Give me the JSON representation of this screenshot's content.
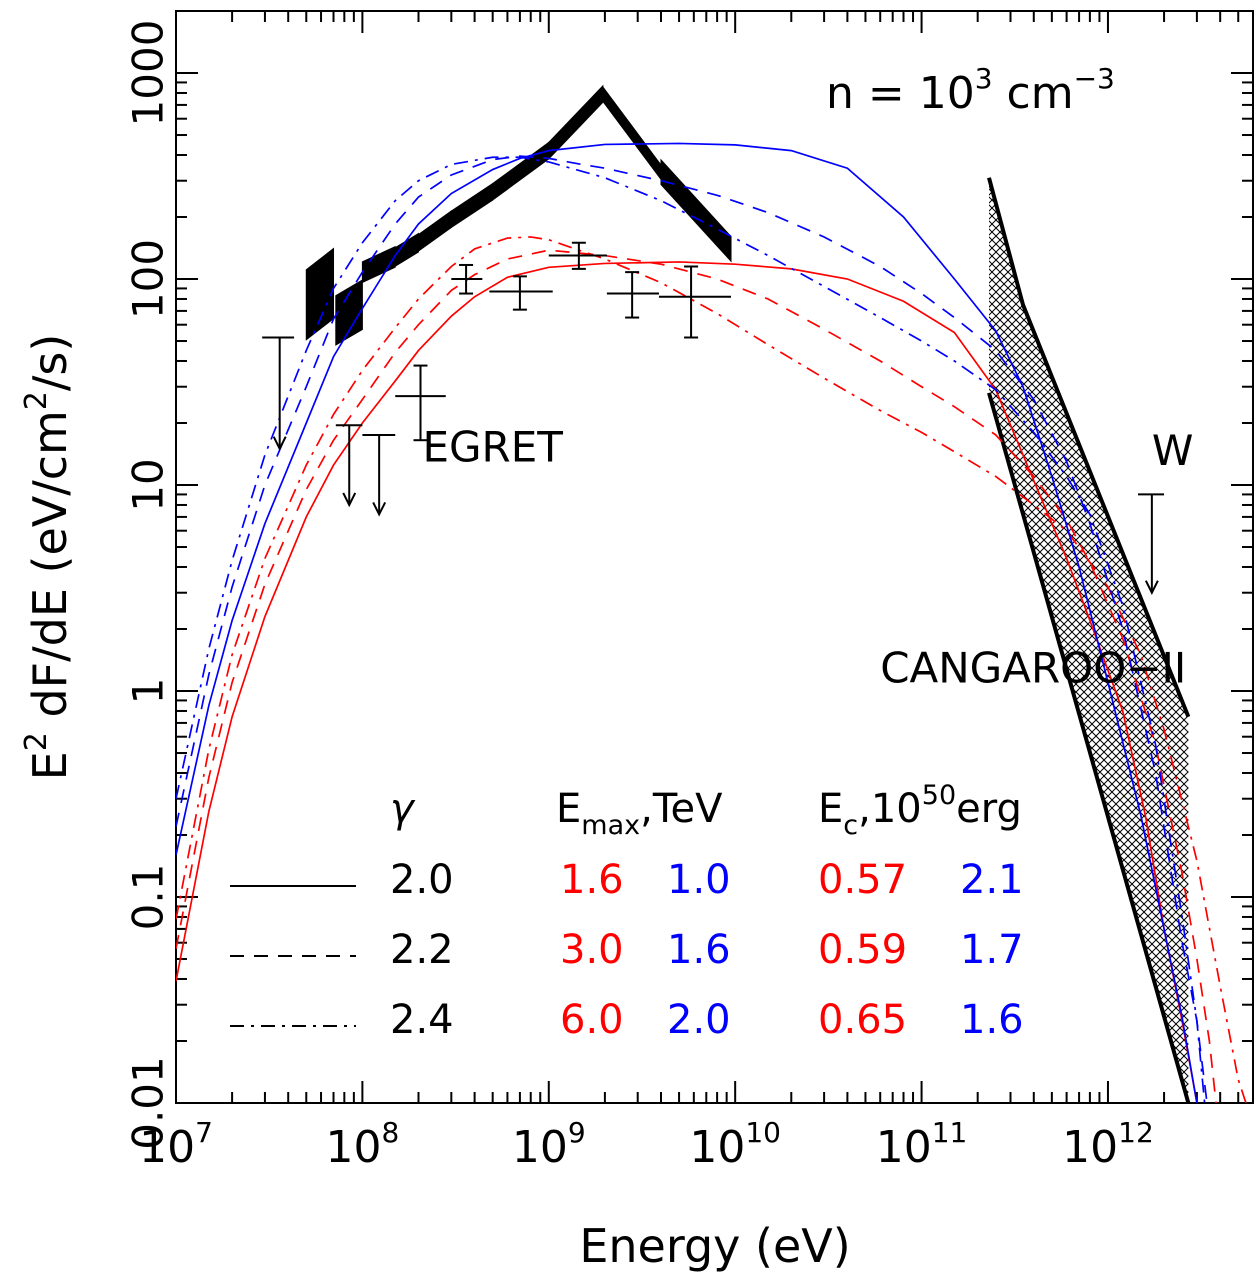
{
  "chart_data": {
    "type": "line",
    "xlabel": "Energy (eV)",
    "ylabel_main": "E",
    "ylabel_sup": "2",
    "ylabel_rest1": " dF/dE (eV/cm",
    "ylabel_sup2": "2",
    "ylabel_rest2": "/s)",
    "xscale": "log",
    "yscale": "log",
    "xlim": [
      10000000.0,
      6000000000000.0
    ],
    "ylim": [
      0.01,
      2000
    ],
    "xticks": [
      {
        "value": 10000000.0,
        "base": "10",
        "exp": "7"
      },
      {
        "value": 100000000.0,
        "base": "10",
        "exp": "8"
      },
      {
        "value": 1000000000.0,
        "base": "10",
        "exp": "9"
      },
      {
        "value": 10000000000.0,
        "base": "10",
        "exp": "10"
      },
      {
        "value": 100000000000.0,
        "base": "10",
        "exp": "11"
      },
      {
        "value": 1000000000000.0,
        "base": "10",
        "exp": "12"
      }
    ],
    "yticks": [
      {
        "value": 0.01,
        "label": "0.01"
      },
      {
        "value": 0.1,
        "label": "0.1"
      },
      {
        "value": 1,
        "label": "1"
      },
      {
        "value": 10,
        "label": "10"
      },
      {
        "value": 100,
        "label": "100"
      },
      {
        "value": 1000,
        "label": "1000"
      }
    ],
    "density_label": {
      "prefix": "n = 10",
      "exp1": "3",
      "mid": " cm",
      "exp2": "−3"
    },
    "annotations": [
      {
        "text": "EGRET",
        "x": 210000000.0,
        "y": 13
      },
      {
        "text": "CANGAROO−II",
        "x": 60000000000.0,
        "y": 1.1
      },
      {
        "text": "W",
        "x": 1720000000000.0,
        "y": 12.5
      }
    ],
    "legend": {
      "headers": {
        "gamma": "γ",
        "emax_main": "E",
        "emax_sub": "max",
        "emax_rest": ",TeV",
        "ec_main": "E",
        "ec_sub": "c",
        "ec_rest": ",10",
        "ec_sup": "50",
        "ec_unit": "erg"
      },
      "rows": [
        {
          "style": "solid",
          "gamma": "2.0",
          "emax_red": "1.6",
          "emax_blue": "1.0",
          "ec_red": "0.57",
          "ec_blue": "2.1"
        },
        {
          "style": "dashed",
          "gamma": "2.2",
          "emax_red": "3.0",
          "emax_blue": "1.6",
          "ec_red": "0.59",
          "ec_blue": "1.7"
        },
        {
          "style": "dashdot",
          "gamma": "2.4",
          "emax_red": "6.0",
          "emax_blue": "2.0",
          "ec_red": "0.65",
          "ec_blue": "1.6"
        }
      ]
    },
    "colors": {
      "red": "#ff0000",
      "blue": "#0000ff",
      "black": "#000000"
    },
    "series": [
      {
        "color": "red",
        "style": "solid",
        "points": [
          [
            10000000.0,
            0.039
          ],
          [
            15000000.0,
            0.26
          ],
          [
            20000000.0,
            0.75
          ],
          [
            30000000.0,
            2.3
          ],
          [
            50000000.0,
            7
          ],
          [
            70000000.0,
            12.5
          ],
          [
            100000000.0,
            20
          ],
          [
            150000000.0,
            32
          ],
          [
            200000000.0,
            45
          ],
          [
            300000000.0,
            66
          ],
          [
            400000000.0,
            82
          ],
          [
            600000000.0,
            102
          ],
          [
            1000000000.0,
            114
          ],
          [
            2000000000.0,
            119
          ],
          [
            5000000000.0,
            121
          ],
          [
            10000000000.0,
            118
          ],
          [
            20000000000.0,
            112
          ],
          [
            40000000000.0,
            100
          ],
          [
            80000000000.0,
            78
          ],
          [
            150000000000.0,
            55
          ],
          [
            250000000000.0,
            29
          ],
          [
            400000000000.0,
            10.5
          ],
          [
            600000000000.0,
            4.4
          ],
          [
            800000000000.0,
            2.2
          ],
          [
            1200000000000.0,
            0.8
          ],
          [
            1600000000000.0,
            0.24
          ],
          [
            2000000000000.0,
            0.07
          ],
          [
            2500000000000.0,
            0.025
          ],
          [
            3000000000000.0,
            0.01
          ]
        ]
      },
      {
        "color": "red",
        "style": "dashed",
        "points": [
          [
            10000000.0,
            0.056
          ],
          [
            15000000.0,
            0.38
          ],
          [
            20000000.0,
            1.1
          ],
          [
            30000000.0,
            3.3
          ],
          [
            50000000.0,
            9.5
          ],
          [
            70000000.0,
            16.5
          ],
          [
            100000000.0,
            26
          ],
          [
            150000000.0,
            44
          ],
          [
            200000000.0,
            60
          ],
          [
            300000000.0,
            88
          ],
          [
            400000000.0,
            105
          ],
          [
            600000000.0,
            125
          ],
          [
            1000000000.0,
            138
          ],
          [
            2000000000.0,
            130
          ],
          [
            4000000000.0,
            118
          ],
          [
            8000000000.0,
            100
          ],
          [
            15000000000.0,
            80
          ],
          [
            30000000000.0,
            57
          ],
          [
            60000000000.0,
            40
          ],
          [
            100000000000.0,
            30
          ],
          [
            150000000000.0,
            24
          ],
          [
            250000000000.0,
            17.5
          ],
          [
            400000000000.0,
            11
          ],
          [
            600000000000.0,
            6.8
          ],
          [
            800000000000.0,
            4.2
          ],
          [
            1200000000000.0,
            1.8
          ],
          [
            1800000000000.0,
            0.55
          ],
          [
            2500000000000.0,
            0.13
          ],
          [
            3000000000000.0,
            0.05
          ],
          [
            3500000000000.0,
            0.02
          ],
          [
            3800000000000.0,
            0.01
          ]
        ]
      },
      {
        "color": "red",
        "style": "dashdot",
        "points": [
          [
            10000000.0,
            0.078
          ],
          [
            15000000.0,
            0.52
          ],
          [
            20000000.0,
            1.5
          ],
          [
            30000000.0,
            4.4
          ],
          [
            50000000.0,
            12.5
          ],
          [
            70000000.0,
            22
          ],
          [
            100000000.0,
            36
          ],
          [
            150000000.0,
            58
          ],
          [
            200000000.0,
            80
          ],
          [
            300000000.0,
            115
          ],
          [
            400000000.0,
            140
          ],
          [
            600000000.0,
            158
          ],
          [
            800000000.0,
            160
          ],
          [
            1000000000.0,
            155
          ],
          [
            2000000000.0,
            125
          ],
          [
            4000000000.0,
            96
          ],
          [
            8000000000.0,
            68
          ],
          [
            15000000000.0,
            48
          ],
          [
            30000000000.0,
            33
          ],
          [
            60000000000.0,
            23
          ],
          [
            100000000000.0,
            18
          ],
          [
            150000000000.0,
            14.5
          ],
          [
            250000000000.0,
            11
          ],
          [
            400000000000.0,
            8
          ],
          [
            600000000000.0,
            6
          ],
          [
            1000000000000.0,
            3.2
          ],
          [
            1500000000000.0,
            1.5
          ],
          [
            2000000000000.0,
            0.65
          ],
          [
            3000000000000.0,
            0.15
          ],
          [
            4000000000000.0,
            0.037
          ],
          [
            5000000000000.0,
            0.013
          ],
          [
            5500000000000.0,
            0.01
          ]
        ]
      },
      {
        "color": "blue",
        "style": "solid",
        "points": [
          [
            10000000.0,
            0.16
          ],
          [
            15000000.0,
            0.85
          ],
          [
            20000000.0,
            2.2
          ],
          [
            30000000.0,
            6.5
          ],
          [
            50000000.0,
            20
          ],
          [
            70000000.0,
            42
          ],
          [
            100000000.0,
            72
          ],
          [
            150000000.0,
            130
          ],
          [
            200000000.0,
            185
          ],
          [
            300000000.0,
            260
          ],
          [
            500000000.0,
            340
          ],
          [
            700000000.0,
            385
          ],
          [
            1000000000.0,
            420
          ],
          [
            2000000000.0,
            450
          ],
          [
            5000000000.0,
            455
          ],
          [
            10000000000.0,
            448
          ],
          [
            20000000000.0,
            420
          ],
          [
            40000000000.0,
            345
          ],
          [
            80000000000.0,
            200
          ],
          [
            150000000000.0,
            100
          ],
          [
            250000000000.0,
            56
          ],
          [
            350000000000.0,
            30
          ],
          [
            500000000000.0,
            11
          ],
          [
            700000000000.0,
            4
          ],
          [
            1000000000000.0,
            1.1
          ],
          [
            1500000000000.0,
            0.25
          ],
          [
            2000000000000.0,
            0.07
          ],
          [
            2500000000000.0,
            0.026
          ],
          [
            3000000000000.0,
            0.01
          ]
        ]
      },
      {
        "color": "blue",
        "style": "dashed",
        "points": [
          [
            10000000.0,
            0.22
          ],
          [
            15000000.0,
            1.2
          ],
          [
            20000000.0,
            3.2
          ],
          [
            30000000.0,
            10
          ],
          [
            50000000.0,
            30
          ],
          [
            70000000.0,
            64
          ],
          [
            100000000.0,
            108
          ],
          [
            150000000.0,
            185
          ],
          [
            200000000.0,
            250
          ],
          [
            300000000.0,
            320
          ],
          [
            500000000.0,
            380
          ],
          [
            700000000.0,
            395
          ],
          [
            1000000000.0,
            385
          ],
          [
            1500000000.0,
            360
          ],
          [
            2000000000.0,
            345
          ],
          [
            4000000000.0,
            300
          ],
          [
            8000000000.0,
            255
          ],
          [
            15000000000.0,
            210
          ],
          [
            30000000000.0,
            160
          ],
          [
            60000000000.0,
            115
          ],
          [
            100000000000.0,
            85
          ],
          [
            150000000000.0,
            65
          ],
          [
            250000000000.0,
            45
          ],
          [
            400000000000.0,
            26
          ],
          [
            600000000000.0,
            13
          ],
          [
            800000000000.0,
            6.5
          ],
          [
            1200000000000.0,
            2
          ],
          [
            1800000000000.0,
            0.4
          ],
          [
            2500000000000.0,
            0.06
          ],
          [
            3000000000000.0,
            0.025
          ],
          [
            3400000000000.0,
            0.01
          ]
        ]
      },
      {
        "color": "blue",
        "style": "dashdot",
        "points": [
          [
            10000000.0,
            0.3
          ],
          [
            15000000.0,
            1.6
          ],
          [
            20000000.0,
            4.3
          ],
          [
            30000000.0,
            14
          ],
          [
            50000000.0,
            45
          ],
          [
            70000000.0,
            90
          ],
          [
            100000000.0,
            150
          ],
          [
            150000000.0,
            240
          ],
          [
            200000000.0,
            300
          ],
          [
            300000000.0,
            360
          ],
          [
            500000000.0,
            390
          ],
          [
            700000000.0,
            390
          ],
          [
            1000000000.0,
            370
          ],
          [
            2000000000.0,
            310
          ],
          [
            4000000000.0,
            240
          ],
          [
            8000000000.0,
            175
          ],
          [
            15000000000.0,
            130
          ],
          [
            30000000000.0,
            92
          ],
          [
            60000000000.0,
            65
          ],
          [
            100000000000.0,
            50
          ],
          [
            150000000000.0,
            40
          ],
          [
            250000000000.0,
            29
          ],
          [
            400000000000.0,
            18
          ],
          [
            600000000000.0,
            11
          ],
          [
            800000000000.0,
            7.2
          ],
          [
            1200000000000.0,
            2.6
          ],
          [
            1800000000000.0,
            0.55
          ],
          [
            2500000000000.0,
            0.08
          ],
          [
            3000000000000.0,
            0.025
          ],
          [
            3300000000000.0,
            0.01
          ]
        ]
      }
    ],
    "egret_points": [
      {
        "x": 360000000.0,
        "y": 100,
        "xlo": 300000000.0,
        "xhi": 440000000.0,
        "ylo": 85,
        "yhi": 117
      },
      {
        "x": 700000000.0,
        "y": 87,
        "xlo": 480000000.0,
        "xhi": 1050000000.0,
        "ylo": 71,
        "yhi": 103
      },
      {
        "x": 1450000000.0,
        "y": 130,
        "xlo": 1000000000.0,
        "xhi": 2050000000.0,
        "ylo": 112,
        "yhi": 150
      },
      {
        "x": 2800000000.0,
        "y": 85,
        "xlo": 2050000000.0,
        "xhi": 3900000000.0,
        "ylo": 65,
        "yhi": 108
      },
      {
        "x": 5800000000.0,
        "y": 82,
        "xlo": 3900000000.0,
        "xhi": 9500000000.0,
        "ylo": 52,
        "yhi": 115
      },
      {
        "x": 205000000.0,
        "y": 27,
        "xlo": 150000000.0,
        "xhi": 280000000.0,
        "ylo": 16.5,
        "yhi": 38
      }
    ],
    "upper_limits": [
      {
        "x": 36000000.0,
        "y": 52,
        "xlo": 29000000.0,
        "xhi": 43000000.0,
        "yarrow": 15
      },
      {
        "x": 85000000.0,
        "y": 19.5,
        "xlo": 72000000.0,
        "xhi": 100000000.0,
        "yarrow": 8
      },
      {
        "x": 123000000.0,
        "y": 17.5,
        "xlo": 100000000.0,
        "xhi": 150000000.0,
        "yarrow": 7.2
      },
      {
        "x": 1720000000000.0,
        "y": 9,
        "xlo": 1450000000000.0,
        "xhi": 2000000000000.0,
        "yarrow": 3
      }
    ],
    "egret_bowtie": [
      {
        "x1": 50000000.0,
        "x2": 70000000.0,
        "y1": 75,
        "y2": 95,
        "w": 0.17
      },
      {
        "x1": 72000000.0,
        "x2": 100000000.0,
        "y1": 63,
        "y2": 75,
        "w": 0.12
      },
      {
        "x1": 100000000.0,
        "x2": 150000000.0,
        "y1": 108,
        "y2": 128,
        "w": 0.05
      },
      {
        "x1": 150000000.0,
        "x2": 200000000.0,
        "y1": 128,
        "y2": 150,
        "w": 0.045
      },
      {
        "x1": 200000000.0,
        "x2": 300000000.0,
        "y1": 150,
        "y2": 195,
        "w": 0.04
      },
      {
        "x1": 300000000.0,
        "x2": 500000000.0,
        "y1": 195,
        "y2": 265,
        "w": 0.04
      },
      {
        "x1": 500000000.0,
        "x2": 1000000000.0,
        "y1": 265,
        "y2": 420,
        "w": 0.04
      },
      {
        "x1": 1000000000.0,
        "x2": 1950000000.0,
        "y1": 420,
        "y2": 790,
        "w": 0.04
      },
      {
        "x1": 1950000000.0,
        "x2": 4000000000.0,
        "y1": 790,
        "y2": 330,
        "w": 0.035
      },
      {
        "x1": 4000000000.0,
        "x2": 9500000000.0,
        "y1": 330,
        "y2": 140,
        "w": 0.06
      }
    ],
    "cangaroo_band": {
      "xlo": 230000000000.0,
      "xhi": 2700000000000.0,
      "upper": [
        [
          230000000000.0,
          310
        ],
        [
          350000000000.0,
          75
        ],
        [
          2700000000000.0,
          0.75
        ]
      ],
      "lower": [
        [
          230000000000.0,
          28
        ],
        [
          2700000000000.0,
          0.01
        ]
      ]
    }
  }
}
